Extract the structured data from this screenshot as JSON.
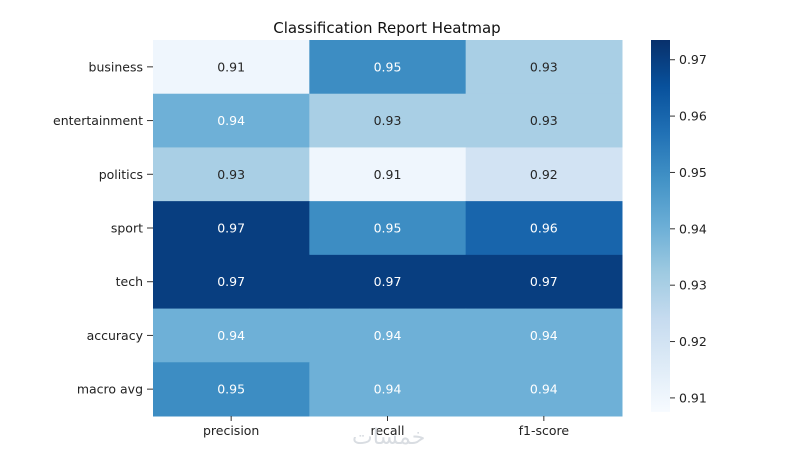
{
  "chart_data": {
    "type": "heatmap",
    "title": "Classification Report Heatmap",
    "rows": [
      "business",
      "entertainment",
      "politics",
      "sport",
      "tech",
      "accuracy",
      "macro avg"
    ],
    "columns": [
      "precision",
      "recall",
      "f1-score"
    ],
    "values": [
      [
        0.91,
        0.95,
        0.93
      ],
      [
        0.94,
        0.93,
        0.93
      ],
      [
        0.93,
        0.91,
        0.92
      ],
      [
        0.97,
        0.95,
        0.96
      ],
      [
        0.97,
        0.97,
        0.97
      ],
      [
        0.94,
        0.94,
        0.94
      ],
      [
        0.95,
        0.94,
        0.94
      ]
    ],
    "cell_labels": [
      [
        "0.91",
        "0.95",
        "0.93"
      ],
      [
        "0.94",
        "0.93",
        "0.93"
      ],
      [
        "0.93",
        "0.91",
        "0.92"
      ],
      [
        "0.97",
        "0.95",
        "0.96"
      ],
      [
        "0.97",
        "0.97",
        "0.97"
      ],
      [
        "0.94",
        "0.94",
        "0.94"
      ],
      [
        "0.95",
        "0.94",
        "0.94"
      ]
    ],
    "colormap": "Blues",
    "colorbar": {
      "min": 0.9075,
      "max": 0.9735,
      "ticks": [
        0.91,
        0.92,
        0.93,
        0.94,
        0.95,
        0.96,
        0.97
      ],
      "tick_labels": [
        "0.91",
        "0.92",
        "0.93",
        "0.94",
        "0.95",
        "0.96",
        "0.97"
      ]
    }
  },
  "watermark": "خمسات"
}
